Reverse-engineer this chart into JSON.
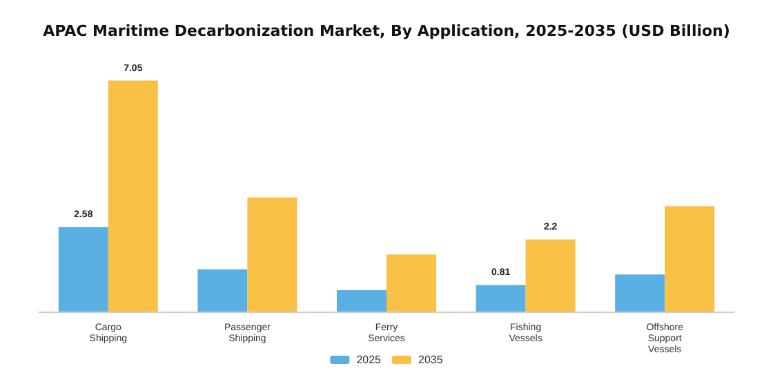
{
  "chart_data": {
    "type": "bar",
    "title": "APAC Maritime Decarbonization Market, By Application, 2025-2035 (USD Billion)",
    "categories": [
      "Cargo Shipping",
      "Passenger Shipping",
      "Ferry Services",
      "Fishing Vessels",
      "Offshore Support Vessels"
    ],
    "series": [
      {
        "name": "2025",
        "color": "#5aafe3",
        "values": [
          2.58,
          1.29,
          0.65,
          0.81,
          1.13
        ],
        "value_labels": [
          "2.58",
          null,
          null,
          "0.81",
          null
        ]
      },
      {
        "name": "2035",
        "color": "#f8c146",
        "values": [
          7.05,
          3.48,
          1.74,
          2.2,
          3.21
        ],
        "value_labels": [
          "7.05",
          null,
          null,
          "2.2",
          null
        ]
      }
    ],
    "legend": "bottom",
    "grid": false,
    "tick_labels": "x"
  }
}
